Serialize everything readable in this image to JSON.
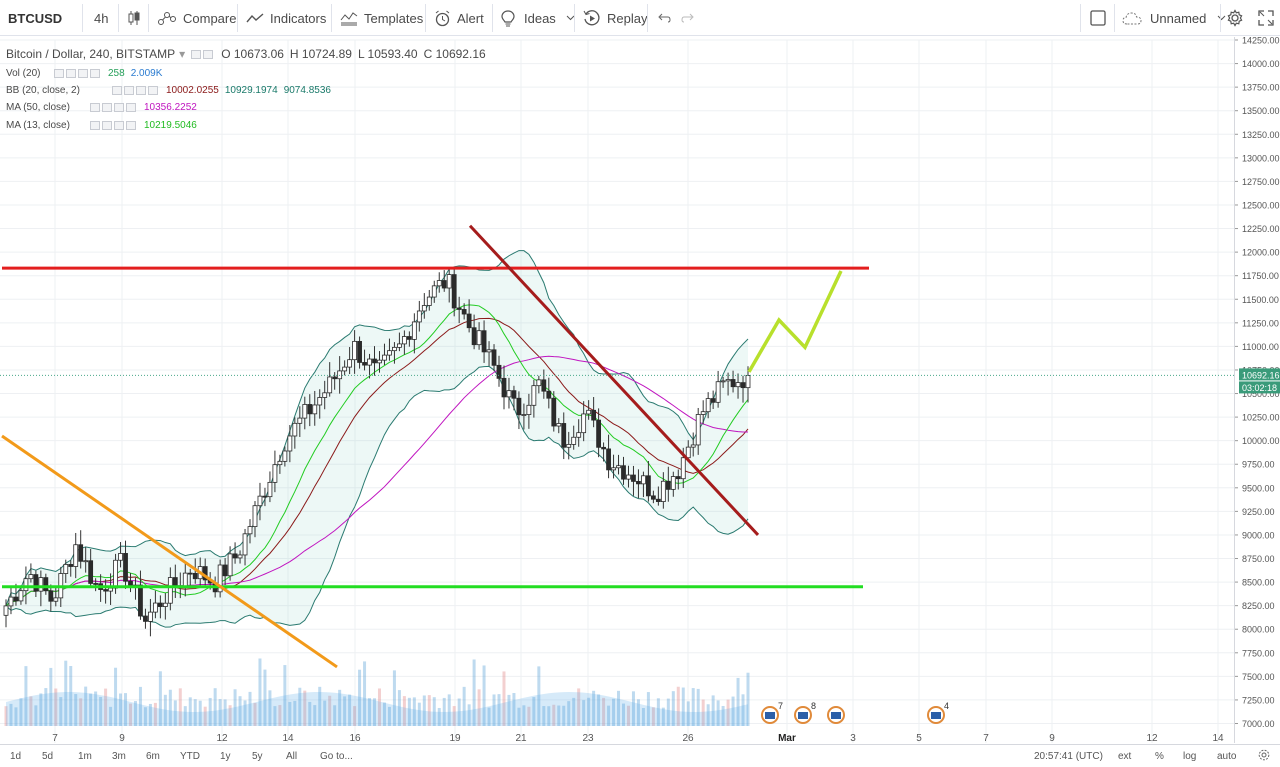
{
  "toolbar": {
    "symbol": "BTCUSD",
    "interval": "4h",
    "compare": "Compare",
    "indicators": "Indicators",
    "templates": "Templates",
    "alert": "Alert",
    "ideas": "Ideas",
    "replay": "Replay",
    "layout_name": "Unnamed"
  },
  "legend": {
    "main": {
      "title": "Bitcoin / Dollar, 240, BITSTAMP",
      "o": "O 10673.06",
      "h": "H 10724.89",
      "l": "L 10593.40",
      "c": "C 10692.16"
    },
    "vol": {
      "label": "Vol (20)",
      "v1": "258",
      "v2": "2.009K"
    },
    "bb": {
      "label": "BB (20, close, 2)",
      "v1": "10002.0255",
      "v2": "10929.1974",
      "v3": "9074.8536"
    },
    "ma50": {
      "label": "MA (50, close)",
      "v1": "10356.2252"
    },
    "ma13": {
      "label": "MA (13, close)",
      "v1": "10219.5046"
    }
  },
  "price_axis": {
    "ticks": [
      "14250.00",
      "14000.00",
      "13750.00",
      "13500.00",
      "13250.00",
      "13000.00",
      "12750.00",
      "12500.00",
      "12250.00",
      "12000.00",
      "11750.00",
      "11500.00",
      "11250.00",
      "11000.00",
      "10750.00",
      "10500.00",
      "10250.00",
      "10000.00",
      "9750.00",
      "9500.00",
      "9250.00",
      "9000.00",
      "8750.00",
      "8500.00",
      "8250.00",
      "8000.00",
      "7750.00",
      "7500.00",
      "7250.00",
      "7000.00"
    ],
    "last_price": "10692.16",
    "countdown": "03:02:18"
  },
  "time_axis": [
    "7",
    "9",
    "12",
    "14",
    "16",
    "19",
    "21",
    "23",
    "26",
    "Mar",
    "3",
    "5",
    "7",
    "9",
    "12",
    "14"
  ],
  "events": [
    {
      "count": "7"
    },
    {
      "count": "8"
    },
    {
      "count": ""
    },
    {
      "count": "4"
    }
  ],
  "bottom_bar": {
    "ranges": [
      "1d",
      "5d",
      "1m",
      "3m",
      "6m",
      "YTD",
      "1y",
      "5y",
      "All"
    ],
    "goto": "Go to...",
    "clock": "20:57:41 (UTC)",
    "ext": "ext",
    "pct": "%",
    "log": "log",
    "auto": "auto"
  },
  "chart_data": {
    "type": "candlestick",
    "symbol": "Bitcoin / Dollar, 240, BITSTAMP",
    "ylim": [
      7000,
      14250
    ],
    "x_ticks": [
      "7",
      "9",
      "12",
      "14",
      "16",
      "19",
      "21",
      "23",
      "26",
      "Mar",
      "3",
      "5",
      "7",
      "9",
      "12",
      "14"
    ],
    "close_path": [
      8250,
      8600,
      8300,
      8900,
      8400,
      8700,
      8100,
      8400,
      8650,
      8500,
      8800,
      9400,
      10000,
      10300,
      10600,
      11000,
      10700,
      11000,
      11500,
      11700,
      11200,
      10800,
      10300,
      10600,
      10000,
      10300,
      9800,
      9650,
      9450,
      9700,
      10300,
      10600,
      10692
    ],
    "drawn_lines": {
      "resistance": 11830,
      "support": 8450,
      "colors": {
        "resistance": "#e31e1e",
        "support": "#22dd22",
        "downtrend": "#a51c1c",
        "early_trend": "#f29a1a",
        "projection": "#b8e02c"
      }
    },
    "volume_scale": "2.009K"
  }
}
